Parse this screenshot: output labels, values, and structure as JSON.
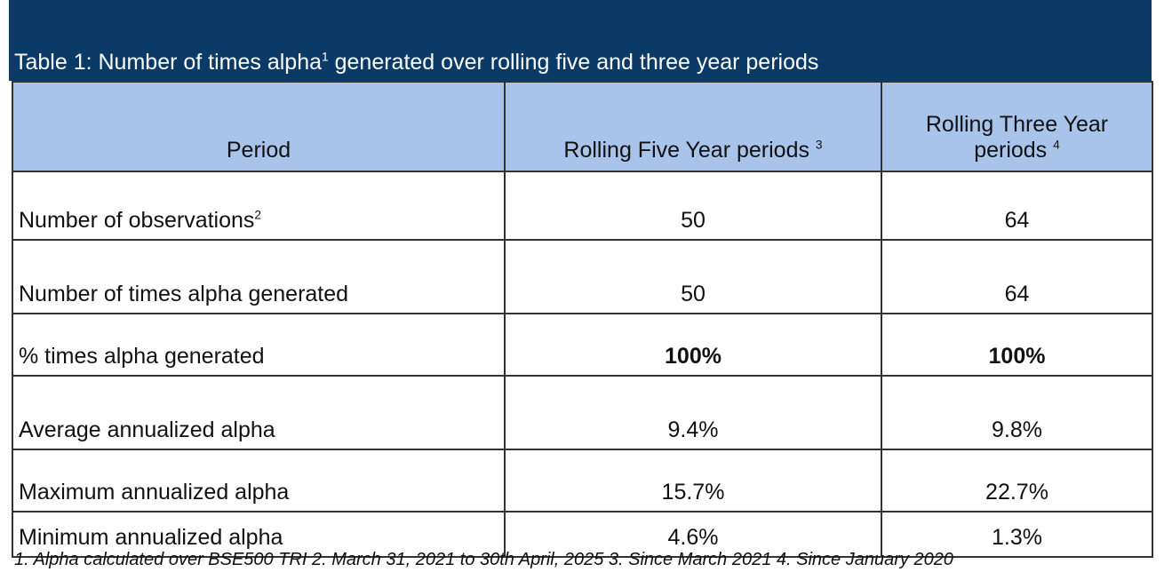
{
  "title": {
    "text_before": "Table 1: Number of times alpha",
    "sup": "1",
    "text_after": " generated over rolling five and three year periods"
  },
  "colors": {
    "title_bg": "#0b3a66",
    "header_bg": "#a9c4ea",
    "border": "#333333"
  },
  "columns": [
    {
      "label": "Period",
      "sup": ""
    },
    {
      "label": "Rolling Five Year periods ",
      "sup": "3"
    },
    {
      "label": "Rolling Three Year periods ",
      "sup": "4"
    }
  ],
  "rows": [
    {
      "label": "Number of observations",
      "sup": "2",
      "five": "50",
      "three": "64",
      "bold": false
    },
    {
      "label": "Number of times alpha generated",
      "sup": "",
      "five": "50",
      "three": "64",
      "bold": false
    },
    {
      "label": "% times alpha generated",
      "sup": "",
      "five": "100%",
      "three": "100%",
      "bold": true
    },
    {
      "label": "Average annualized alpha",
      "sup": "",
      "five": "9.4%",
      "three": "9.8%",
      "bold": false
    },
    {
      "label": "Maximum annualized alpha",
      "sup": "",
      "five": "15.7%",
      "three": "22.7%",
      "bold": false
    },
    {
      "label": "Minimum annualized alpha",
      "sup": "",
      "five": "4.6%",
      "three": "1.3%",
      "bold": false
    }
  ],
  "footnote": "1. Alpha calculated over BSE500 TRI 2. March 31, 2021 to 30th April, 2025 3. Since March 2021 4. Since January 2020"
}
